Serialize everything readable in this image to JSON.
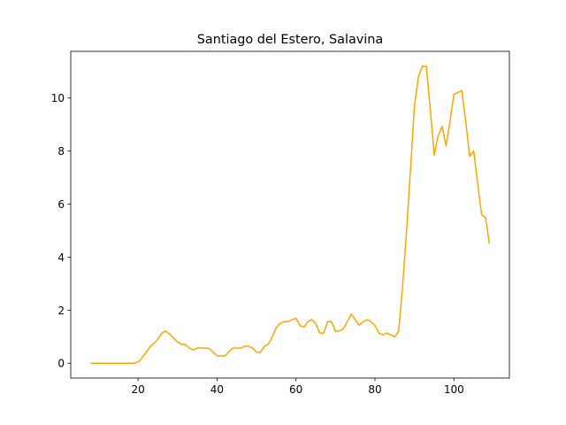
{
  "chart_data": {
    "type": "line",
    "title": "Santiago del Estero, Salavina",
    "xlabel": "",
    "ylabel": "",
    "xlim": [
      2.95,
      114.05
    ],
    "ylim": [
      -0.56,
      11.76
    ],
    "xticks": [
      20,
      40,
      60,
      80,
      100
    ],
    "yticks": [
      0,
      2,
      4,
      6,
      8,
      10
    ],
    "grid": false,
    "color": "#ffa500",
    "series": [
      {
        "x": [
          8,
          9,
          10,
          11,
          12,
          13,
          14,
          15,
          16,
          17,
          18,
          19,
          20,
          21,
          22,
          23,
          24,
          25,
          26,
          27,
          28,
          29,
          30,
          31,
          32,
          33,
          34,
          35,
          36,
          37,
          38,
          39,
          40,
          41,
          42,
          43,
          44,
          45,
          46,
          47,
          48,
          49,
          50,
          51,
          52,
          53,
          54,
          55,
          56,
          57,
          58,
          59,
          60,
          61,
          62,
          63,
          64,
          65,
          66,
          67,
          68,
          69,
          70,
          71,
          72,
          73,
          74,
          75,
          76,
          77,
          78,
          79,
          80,
          81,
          82,
          83,
          84,
          85,
          86,
          87,
          88,
          89,
          90,
          91,
          92,
          93,
          94,
          95,
          96,
          97,
          98,
          99,
          100,
          101,
          102,
          103,
          104,
          105,
          106,
          107,
          108,
          109
        ],
        "y": [
          0,
          0,
          0,
          0,
          0,
          0,
          0,
          0,
          0,
          0,
          0,
          0,
          0.05,
          0.2,
          0.4,
          0.62,
          0.75,
          0.9,
          1.14,
          1.21,
          1.1,
          0.95,
          0.8,
          0.72,
          0.7,
          0.57,
          0.5,
          0.58,
          0.57,
          0.57,
          0.56,
          0.41,
          0.28,
          0.28,
          0.28,
          0.43,
          0.57,
          0.57,
          0.57,
          0.64,
          0.64,
          0.57,
          0.42,
          0.41,
          0.64,
          0.72,
          1.0,
          1.35,
          1.5,
          1.57,
          1.57,
          1.64,
          1.7,
          1.42,
          1.36,
          1.57,
          1.64,
          1.5,
          1.14,
          1.14,
          1.57,
          1.57,
          1.2,
          1.22,
          1.3,
          1.57,
          1.85,
          1.64,
          1.43,
          1.57,
          1.64,
          1.57,
          1.42,
          1.14,
          1.07,
          1.14,
          1.07,
          1.0,
          1.2,
          2.9,
          5.0,
          7.3,
          9.7,
          10.8,
          11.2,
          11.2,
          9.6,
          7.85,
          8.57,
          8.93,
          8.21,
          9.1,
          10.14,
          10.21,
          10.28,
          9.1,
          7.8,
          8.0,
          6.8,
          5.6,
          5.5,
          4.5
        ]
      }
    ]
  }
}
